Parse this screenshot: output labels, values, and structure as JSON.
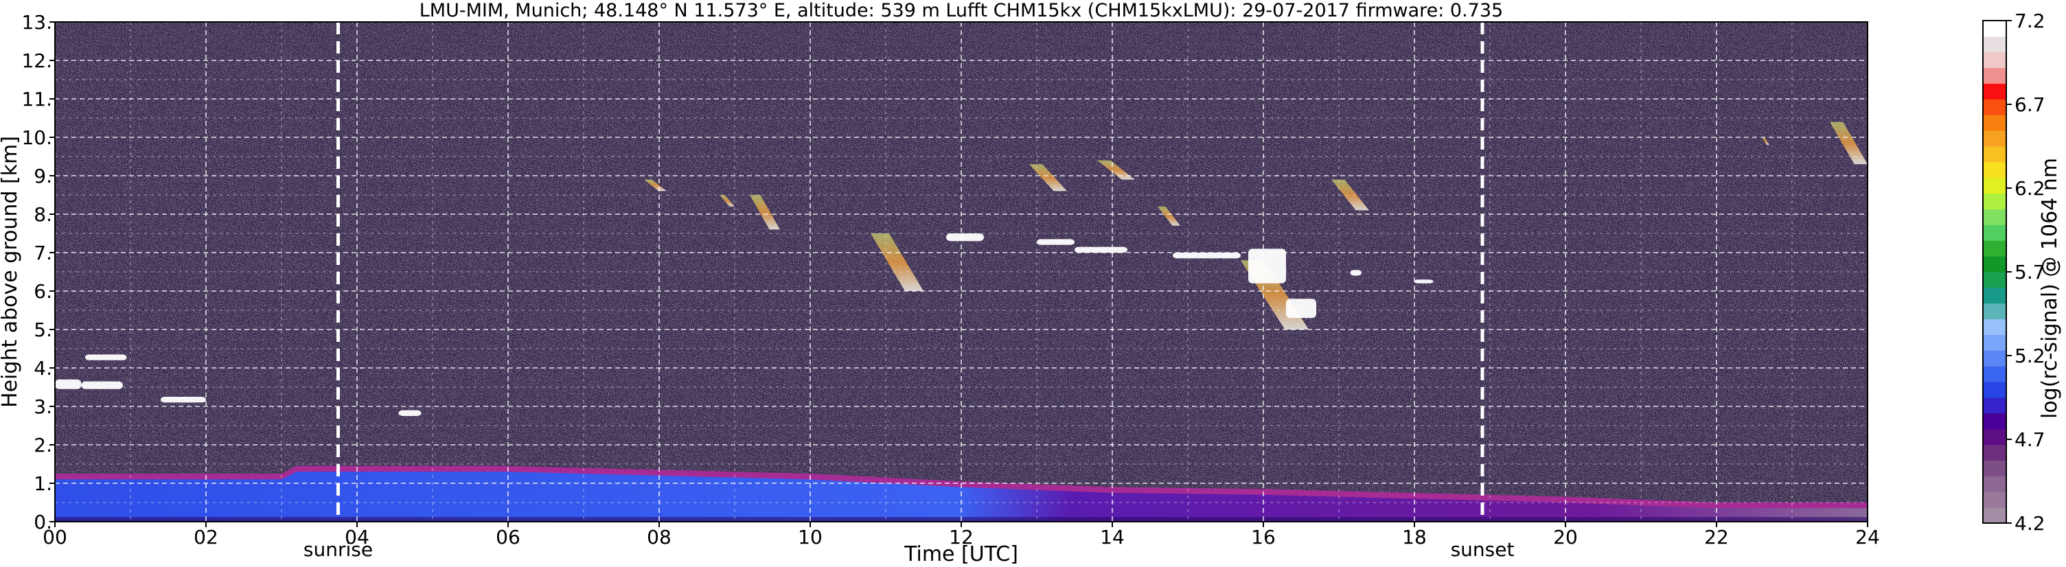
{
  "chart_data": {
    "type": "heatmap",
    "title": "LMU-MIM, Munich; 48.148° N 11.573° E, altitude: 539 m    Lufft CHM15kx (CHM15kxLMU): 29-07-2017    firmware: 0.735",
    "xlabel": "Time [UTC]",
    "ylabel": "Height above ground [km]",
    "xlim": [
      0,
      24
    ],
    "ylim": [
      0,
      13
    ],
    "x_ticks": [
      "00",
      "02",
      "04",
      "06",
      "08",
      "10",
      "12",
      "14",
      "16",
      "18",
      "20",
      "22",
      "24"
    ],
    "y_ticks": [
      "0.",
      "1.",
      "2.",
      "3.",
      "4.",
      "5.",
      "6.",
      "7.",
      "8.",
      "9.",
      "10.",
      "11.",
      "12.",
      "13."
    ],
    "grid": true,
    "markers": [
      {
        "label": "sunrise",
        "time": 3.75
      },
      {
        "label": "sunset",
        "time": 18.9
      }
    ],
    "colorbar": {
      "label": "log(rc-signal) @ 1064 nm",
      "range": [
        4.2,
        7.2
      ],
      "ticks": [
        "4.2",
        "4.7",
        "5.2",
        "5.7",
        "6.2",
        "6.7",
        "7.2"
      ],
      "colors": [
        "#a48ea6",
        "#9a7a9c",
        "#8d6892",
        "#7d4f87",
        "#6e2e80",
        "#5e0f85",
        "#4a0098",
        "#3522c8",
        "#2846e6",
        "#3a66f0",
        "#5a86f6",
        "#7aa6fa",
        "#98c0fa",
        "#5ab4b8",
        "#1a9a8a",
        "#19a050",
        "#109828",
        "#30b030",
        "#50d060",
        "#80e060",
        "#b0f040",
        "#e0f020",
        "#f8e020",
        "#f8c020",
        "#f8a020",
        "#f88010",
        "#f85010",
        "#f81010",
        "#f09090",
        "#f0c8c8",
        "#e8e0e0",
        "#ffffff"
      ]
    },
    "clouds": [
      {
        "t0": 0.0,
        "t1": 0.35,
        "h0": 3.45,
        "h1": 3.7
      },
      {
        "t0": 0.35,
        "t1": 0.9,
        "h0": 3.45,
        "h1": 3.65
      },
      {
        "t0": 0.4,
        "t1": 0.95,
        "h0": 4.2,
        "h1": 4.35
      },
      {
        "t0": 1.4,
        "t1": 2.0,
        "h0": 3.1,
        "h1": 3.25
      },
      {
        "t0": 4.55,
        "t1": 4.85,
        "h0": 2.75,
        "h1": 2.9
      },
      {
        "t0": 11.8,
        "t1": 12.3,
        "h0": 7.3,
        "h1": 7.5
      },
      {
        "t0": 13.0,
        "t1": 13.5,
        "h0": 7.2,
        "h1": 7.35
      },
      {
        "t0": 13.5,
        "t1": 14.2,
        "h0": 7.0,
        "h1": 7.15
      },
      {
        "t0": 14.8,
        "t1": 15.7,
        "h0": 6.85,
        "h1": 7.0
      },
      {
        "t0": 15.8,
        "t1": 16.3,
        "h0": 6.2,
        "h1": 7.1
      },
      {
        "t0": 16.3,
        "t1": 16.7,
        "h0": 5.3,
        "h1": 5.8
      },
      {
        "t0": 17.15,
        "t1": 17.3,
        "h0": 6.4,
        "h1": 6.55
      },
      {
        "t0": 18.0,
        "t1": 18.25,
        "h0": 6.2,
        "h1": 6.3
      }
    ],
    "cirrus": [
      {
        "t0": 7.8,
        "t1": 8.1,
        "h0": 8.6,
        "h1": 8.9
      },
      {
        "t0": 8.8,
        "t1": 9.0,
        "h0": 8.2,
        "h1": 8.5
      },
      {
        "t0": 9.2,
        "t1": 9.6,
        "h0": 7.6,
        "h1": 8.5
      },
      {
        "t0": 10.8,
        "t1": 11.5,
        "h0": 6.0,
        "h1": 7.5
      },
      {
        "t0": 12.9,
        "t1": 13.4,
        "h0": 8.6,
        "h1": 9.3
      },
      {
        "t0": 13.8,
        "t1": 14.3,
        "h0": 8.9,
        "h1": 9.4
      },
      {
        "t0": 14.6,
        "t1": 14.9,
        "h0": 7.7,
        "h1": 8.2
      },
      {
        "t0": 15.7,
        "t1": 16.6,
        "h0": 5.0,
        "h1": 6.8
      },
      {
        "t0": 16.9,
        "t1": 17.4,
        "h0": 8.1,
        "h1": 8.9
      },
      {
        "t0": 22.6,
        "t1": 22.7,
        "h0": 9.8,
        "h1": 10.0
      },
      {
        "t0": 23.5,
        "t1": 24.0,
        "h0": 9.3,
        "h1": 10.4
      }
    ],
    "boundary_layer": [
      {
        "time": 0,
        "top": 1.25
      },
      {
        "time": 3,
        "top": 1.25
      },
      {
        "time": 3.2,
        "top": 1.45
      },
      {
        "time": 6,
        "top": 1.45
      },
      {
        "time": 8,
        "top": 1.35
      },
      {
        "time": 10,
        "top": 1.25
      },
      {
        "time": 12,
        "top": 1.05
      },
      {
        "time": 14,
        "top": 0.9
      },
      {
        "time": 16,
        "top": 0.85
      },
      {
        "time": 18,
        "top": 0.75
      },
      {
        "time": 20,
        "top": 0.65
      },
      {
        "time": 22,
        "top": 0.5
      },
      {
        "time": 24,
        "top": 0.5
      }
    ]
  }
}
